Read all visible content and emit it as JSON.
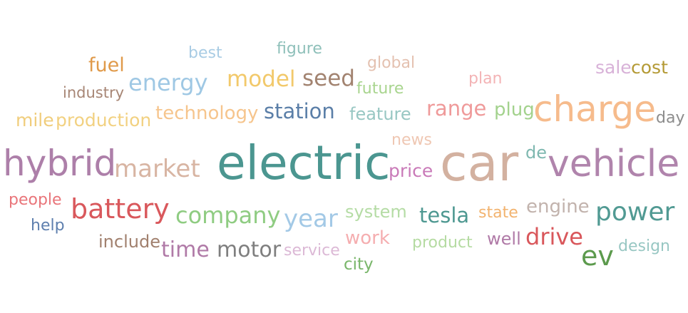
{
  "word_cloud": {
    "words": [
      {
        "text": "fuel",
        "color": "#e09a4a"
      },
      {
        "text": "best",
        "color": "#a9cce4"
      },
      {
        "text": "figure",
        "color": "#8fc0ba"
      },
      {
        "text": "global",
        "color": "#e4c1b0"
      },
      {
        "text": "sale",
        "color": "#d8b2d8"
      },
      {
        "text": "cost",
        "color": "#b49a35"
      },
      {
        "text": "industry",
        "color": "#a78675"
      },
      {
        "text": "energy",
        "color": "#9fc8e4"
      },
      {
        "text": "model",
        "color": "#f2c96b"
      },
      {
        "text": "seed",
        "color": "#a28370"
      },
      {
        "text": "future",
        "color": "#a9d58f"
      },
      {
        "text": "plan",
        "color": "#f3b3b5"
      },
      {
        "text": "charge",
        "color": "#f6bb8c"
      },
      {
        "text": "range",
        "color": "#ef9a9a"
      },
      {
        "text": "plug",
        "color": "#a3d28d"
      },
      {
        "text": "mile",
        "color": "#f0cd7c"
      },
      {
        "text": "production",
        "color": "#f2d181"
      },
      {
        "text": "technology",
        "color": "#f6c58d"
      },
      {
        "text": "station",
        "color": "#5b7fa8"
      },
      {
        "text": "feature",
        "color": "#98c7c3"
      },
      {
        "text": "day",
        "color": "#8c8c8c"
      },
      {
        "text": "news",
        "color": "#efc7b3"
      },
      {
        "text": "de",
        "color": "#7fb8b0"
      },
      {
        "text": "hybrid",
        "color": "#ad7fa9"
      },
      {
        "text": "market",
        "color": "#d8b5a3"
      },
      {
        "text": "electric",
        "color": "#4b9690"
      },
      {
        "text": "price",
        "color": "#c97ab8"
      },
      {
        "text": "car",
        "color": "#d3b1a0"
      },
      {
        "text": "vehicle",
        "color": "#b084ac"
      },
      {
        "text": "people",
        "color": "#e9757a"
      },
      {
        "text": "battery",
        "color": "#d9585c"
      },
      {
        "text": "company",
        "color": "#8fcc82"
      },
      {
        "text": "year",
        "color": "#a3c9e6"
      },
      {
        "text": "system",
        "color": "#b5dca5"
      },
      {
        "text": "tesla",
        "color": "#4e9891"
      },
      {
        "text": "state",
        "color": "#f2b36f"
      },
      {
        "text": "engine",
        "color": "#c2b3ad"
      },
      {
        "text": "power",
        "color": "#519a93"
      },
      {
        "text": "help",
        "color": "#5e7fae"
      },
      {
        "text": "work",
        "color": "#f5aeb0"
      },
      {
        "text": "include",
        "color": "#a1806e"
      },
      {
        "text": "time",
        "color": "#b07aa7"
      },
      {
        "text": "motor",
        "color": "#7f7f7f"
      },
      {
        "text": "service",
        "color": "#dcb9d6"
      },
      {
        "text": "product",
        "color": "#b5dba2"
      },
      {
        "text": "well",
        "color": "#b07aa7"
      },
      {
        "text": "drive",
        "color": "#d9575b"
      },
      {
        "text": "ev",
        "color": "#5c9a4d"
      },
      {
        "text": "design",
        "color": "#98c7c3"
      },
      {
        "text": "city",
        "color": "#79b66a"
      }
    ]
  }
}
